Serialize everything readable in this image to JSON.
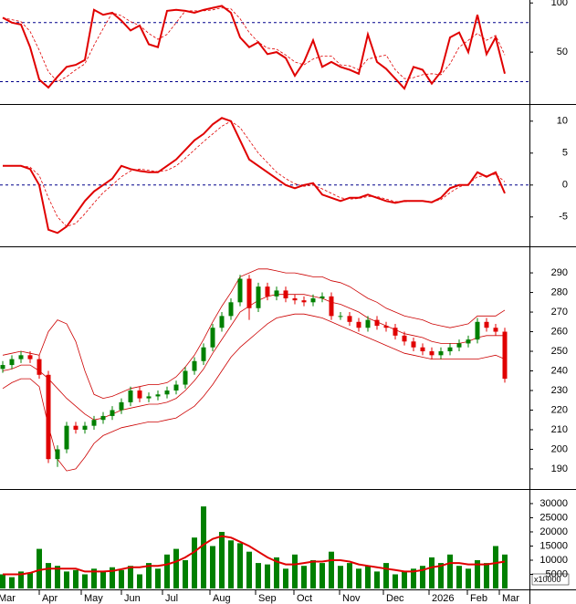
{
  "chart_data": [
    {
      "type": "line",
      "ylim": [
        0,
        103
      ],
      "yticks": [
        50,
        100
      ],
      "hlines": [
        80,
        20
      ],
      "hline_color": "#00008b",
      "series": [
        {
          "color": "#e00000",
          "values": [
            85,
            80,
            78,
            55,
            22,
            14,
            25,
            35,
            37,
            42,
            93,
            88,
            90,
            82,
            72,
            77,
            58,
            55,
            92,
            93,
            92,
            90,
            93,
            95,
            97,
            90,
            65,
            55,
            60,
            48,
            50,
            44,
            26,
            40,
            62,
            35,
            40,
            35,
            32,
            28,
            68,
            40,
            33,
            23,
            13,
            35,
            32,
            18,
            30,
            65,
            70,
            50,
            88,
            48,
            65,
            28
          ]
        },
        {
          "color": "#e00000",
          "dash": true,
          "values": [
            85,
            83,
            81,
            71,
            52,
            30,
            20,
            25,
            32,
            38,
            57,
            74,
            90,
            87,
            81,
            77,
            69,
            63,
            68,
            80,
            92,
            92,
            92,
            93,
            95,
            94,
            84,
            70,
            60,
            54,
            53,
            47,
            40,
            37,
            43,
            46,
            46,
            37,
            36,
            32,
            43,
            45,
            47,
            32,
            23,
            24,
            27,
            28,
            27,
            38,
            55,
            62,
            69,
            62,
            67,
            47
          ]
        }
      ]
    },
    {
      "type": "line",
      "ylim": [
        -9.6,
        12.4
      ],
      "yticks": [
        10,
        5,
        0,
        -5
      ],
      "hlines": [
        0
      ],
      "hline_color": "#00008b",
      "series": [
        {
          "color": "#e00000",
          "values": [
            3,
            3,
            3,
            2.5,
            0,
            -7,
            -7.5,
            -6.5,
            -4.5,
            -2.5,
            -1,
            0,
            1,
            3,
            2.5,
            2.2,
            2,
            2,
            3,
            4,
            5.5,
            7,
            8,
            9.5,
            10.5,
            10,
            7,
            4,
            3,
            2,
            1,
            0,
            -0.5,
            0,
            0.3,
            -1.5,
            -2,
            -2.5,
            -2,
            -2,
            -1.5,
            -2,
            -2.5,
            -2.8,
            -2.5,
            -2.5,
            -2.5,
            -2.7,
            -2,
            -0.5,
            0,
            0,
            2,
            1.3,
            2,
            -1.3
          ]
        },
        {
          "color": "#e00000",
          "dash": true,
          "values": [
            3,
            3,
            3,
            2.8,
            1.5,
            -2,
            -5,
            -6.5,
            -6,
            -4.5,
            -2.8,
            -1.2,
            0,
            1.3,
            2.2,
            2.5,
            2.3,
            2.1,
            2.3,
            3,
            4.2,
            5.5,
            6.8,
            8,
            9.2,
            10,
            9,
            7,
            5,
            3.5,
            2,
            1,
            0.2,
            -0.2,
            0,
            -0.6,
            -1.3,
            -2,
            -2.2,
            -2.1,
            -1.8,
            -1.8,
            -2.2,
            -2.6,
            -2.6,
            -2.5,
            -2.5,
            -2.6,
            -2.3,
            -1.2,
            -0.3,
            0.2,
            1.3,
            1.5,
            1.7,
            0.5
          ]
        }
      ]
    },
    {
      "type": "candlestick",
      "ylim": [
        180.2,
        302.6
      ],
      "yticks": [
        290,
        280,
        270,
        260,
        250,
        240,
        230,
        220,
        210,
        200,
        190
      ],
      "up_color": "#008000",
      "down_color": "#e00000",
      "open": [
        241,
        243,
        246,
        248,
        246,
        238,
        195,
        200,
        212,
        210,
        212,
        215,
        217,
        220,
        224,
        230,
        226,
        227,
        228,
        230,
        233,
        240,
        245,
        252,
        262,
        268,
        275,
        287,
        272,
        283,
        278,
        281,
        277,
        276,
        275,
        277,
        278,
        268,
        268,
        265,
        262,
        266,
        263,
        262,
        258,
        255,
        252,
        250,
        248,
        250,
        252,
        254,
        256,
        265,
        262,
        260
      ],
      "high": [
        245,
        248,
        250,
        250,
        248,
        240,
        202,
        214,
        214,
        214,
        217,
        219,
        222,
        226,
        232,
        232,
        229,
        230,
        232,
        235,
        242,
        247,
        254,
        264,
        270,
        277,
        289,
        289,
        285,
        285,
        283,
        283,
        279,
        278,
        279,
        280,
        280,
        270,
        270,
        267,
        268,
        268,
        265,
        264,
        260,
        257,
        254,
        252,
        252,
        254,
        256,
        258,
        267,
        267,
        264,
        262
      ],
      "low": [
        239,
        241,
        244,
        244,
        236,
        193,
        191,
        198,
        208,
        208,
        210,
        213,
        215,
        218,
        222,
        224,
        224,
        225,
        226,
        228,
        231,
        238,
        243,
        250,
        260,
        266,
        273,
        266,
        270,
        276,
        276,
        275,
        274,
        273,
        273,
        275,
        266,
        266,
        263,
        260,
        260,
        261,
        260,
        256,
        253,
        250,
        248,
        246,
        246,
        248,
        250,
        252,
        254,
        260,
        258,
        234
      ],
      "close": [
        243,
        246,
        248,
        246,
        238,
        195,
        200,
        212,
        210,
        212,
        215,
        217,
        220,
        224,
        230,
        226,
        227,
        228,
        230,
        233,
        240,
        245,
        252,
        262,
        268,
        275,
        287,
        272,
        283,
        278,
        281,
        277,
        276,
        275,
        277,
        278,
        268,
        268,
        265,
        262,
        266,
        263,
        262,
        258,
        255,
        252,
        250,
        248,
        250,
        252,
        254,
        256,
        265,
        262,
        260,
        236
      ],
      "series": [
        {
          "color": "#cc0000",
          "values": [
            248,
            249,
            250,
            249,
            248,
            260,
            266,
            264,
            255,
            240,
            228,
            226,
            227,
            229,
            231,
            232,
            233,
            233,
            234,
            237,
            242,
            248,
            256,
            265,
            273,
            280,
            288,
            290,
            292,
            292,
            291,
            290,
            290,
            289,
            288,
            288,
            286,
            285,
            283,
            280,
            277,
            275,
            272,
            270,
            268,
            267,
            266,
            264,
            263,
            262,
            263,
            264,
            268,
            268,
            268,
            271
          ]
        },
        {
          "color": "#cc0000",
          "values": [
            240,
            241,
            243,
            243,
            240,
            236,
            231,
            226,
            222,
            218,
            215,
            216,
            218,
            220,
            221,
            222,
            223,
            223,
            224,
            226,
            230,
            235,
            241,
            249,
            256,
            263,
            270,
            273,
            276,
            278,
            279,
            279,
            279,
            279,
            278,
            277,
            275,
            274,
            272,
            270,
            267,
            265,
            263,
            261,
            259,
            258,
            257,
            255,
            254,
            254,
            254,
            255,
            257,
            258,
            258,
            258
          ]
        },
        {
          "color": "#cc0000",
          "values": [
            231,
            234,
            236,
            236,
            232,
            212,
            195,
            189,
            190,
            196,
            203,
            207,
            209,
            211,
            212,
            213,
            214,
            214,
            215,
            216,
            219,
            222,
            227,
            233,
            240,
            247,
            252,
            256,
            260,
            264,
            267,
            268,
            269,
            269,
            268,
            267,
            265,
            263,
            261,
            259,
            257,
            255,
            253,
            251,
            249,
            248,
            247,
            246,
            246,
            246,
            246,
            246,
            246,
            247,
            248,
            246
          ]
        }
      ]
    },
    {
      "type": "bar",
      "ylim": [
        0,
        34500
      ],
      "yticks": [
        30000,
        25000,
        20000,
        15000,
        10000,
        5000
      ],
      "unit_label": "x10000",
      "color": "#008000",
      "xlim": [
        -0.3,
        57.7
      ],
      "xticks": [
        {
          "value": -0.8,
          "label": "Mar"
        },
        {
          "value": 4.0,
          "label": "Apr"
        },
        {
          "value": 8.6,
          "label": "May"
        },
        {
          "value": 13.0,
          "label": "Jun"
        },
        {
          "value": 17.5,
          "label": "Jul"
        },
        {
          "value": 22.7,
          "label": "Aug"
        },
        {
          "value": 27.7,
          "label": "Sep"
        },
        {
          "value": 31.9,
          "label": "Oct"
        },
        {
          "value": 36.9,
          "label": "Nov"
        },
        {
          "value": 41.7,
          "label": "Dec"
        },
        {
          "value": 46.7,
          "label": "2026"
        },
        {
          "value": 50.9,
          "label": "Feb"
        },
        {
          "value": 54.4,
          "label": "Mar"
        }
      ],
      "values": [
        5000,
        4000,
        6000,
        5500,
        14000,
        9000,
        8000,
        6000,
        6500,
        5000,
        7000,
        6000,
        7500,
        6500,
        8000,
        5000,
        9000,
        7000,
        12000,
        14000,
        10000,
        18000,
        29000,
        15000,
        20000,
        17000,
        16000,
        13000,
        9000,
        8500,
        11000,
        7000,
        12000,
        8000,
        10000,
        9000,
        13000,
        8000,
        9000,
        7000,
        8000,
        6000,
        9000,
        5000,
        6000,
        7000,
        8000,
        11000,
        9000,
        12000,
        8000,
        7000,
        10000,
        9000,
        15000,
        12000
      ],
      "series": [
        {
          "color": "#e00000",
          "values": [
            5000,
            5000,
            5000,
            5500,
            6500,
            7000,
            7000,
            7000,
            7000,
            6000,
            6000,
            6000,
            6200,
            6800,
            7500,
            7500,
            8000,
            8000,
            8500,
            9500,
            11000,
            13000,
            15500,
            17500,
            18500,
            18000,
            16500,
            15000,
            13000,
            11000,
            9500,
            8500,
            8500,
            9000,
            9500,
            9500,
            10000,
            10000,
            9500,
            8500,
            8000,
            7500,
            7000,
            6500,
            6000,
            6000,
            6500,
            7500,
            8000,
            9000,
            9000,
            8500,
            8500,
            8500,
            9000,
            9500
          ]
        }
      ]
    }
  ]
}
